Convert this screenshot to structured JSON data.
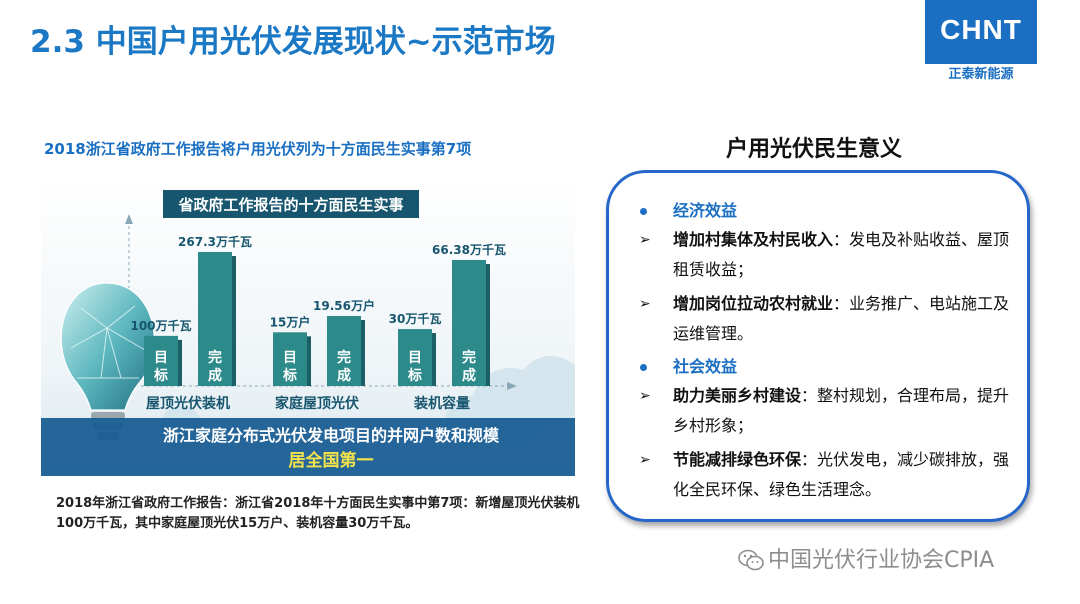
{
  "page": {
    "title": "2.3 中国户用光伏发展现状~示范市场"
  },
  "logo": {
    "mark": "CHNT",
    "subtitle": "正泰新能源"
  },
  "left": {
    "caption": "2018浙江省政府工作报告将户用光伏列为十方面民生实事第7项",
    "infographic": {
      "banner": "省政府工作报告的十方面民生实事",
      "groups": [
        {
          "label": "屋顶光伏装机",
          "target": {
            "label": "目标",
            "value_text": "100万千瓦",
            "value": 100
          },
          "done": {
            "label": "完成",
            "value_text": "267.3万千瓦",
            "value": 267.3
          }
        },
        {
          "label": "家庭屋顶光伏",
          "target": {
            "label": "目标",
            "value_text": "15万户",
            "value": 15
          },
          "done": {
            "label": "完成",
            "value_text": "19.56万户",
            "value": 19.56
          }
        },
        {
          "label": "装机容量",
          "target": {
            "label": "目标",
            "value_text": "30万千瓦",
            "value": 30
          },
          "done": {
            "label": "完成",
            "value_text": "66.38万千瓦",
            "value": 66.38
          }
        }
      ],
      "footer_line1": "浙江家庭分布式光伏发电项目的并网户数和规模",
      "footer_line2": "居全国第一",
      "colors": {
        "bar": "#2d8a8a",
        "bar_shadow": "#1c5f66",
        "banner": "#17566e",
        "footer": "#1a5e93",
        "accent": "#f4e24b"
      }
    },
    "note": "2018年浙江省政府工作报告：浙江省2018年十方面民生实事中第7项：新增屋顶光伏装机100万千瓦，其中家庭屋顶光伏15万户、装机容量30万千瓦。"
  },
  "right": {
    "title": "户用光伏民生意义",
    "sections": [
      {
        "heading": "经济效益",
        "items": [
          {
            "bold": "增加村集体及村民收入",
            "text": "：发电及补贴收益、屋顶租赁收益；"
          },
          {
            "bold": "增加岗位拉动农村就业",
            "text": "：业务推广、电站施工及运维管理。"
          }
        ]
      },
      {
        "heading": "社会效益",
        "items": [
          {
            "bold": "助力美丽乡村建设",
            "text": "：整村规划，合理布局，提升乡村形象；"
          },
          {
            "bold": "节能减排绿色环保",
            "text": "：光伏发电，减少碳排放，强化全民环保、绿色生活理念。"
          }
        ]
      }
    ],
    "bullet_arrow": "➢",
    "accent_color": "#1a6fc2"
  },
  "watermark": {
    "text": "中国光伏行业协会CPIA",
    "icon": "wechat-icon"
  }
}
